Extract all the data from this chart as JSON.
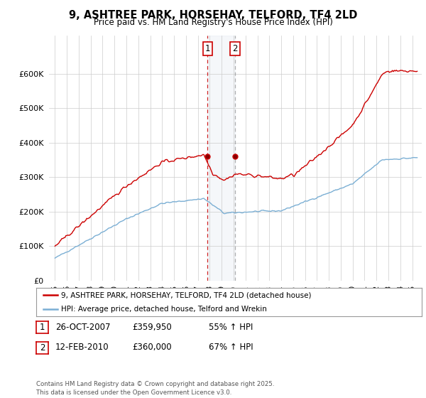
{
  "title": "9, ASHTREE PARK, HORSEHAY, TELFORD, TF4 2LD",
  "subtitle": "Price paid vs. HM Land Registry's House Price Index (HPI)",
  "ylim": [
    0,
    700000
  ],
  "yticks": [
    0,
    100000,
    200000,
    300000,
    400000,
    500000,
    600000
  ],
  "ytick_labels": [
    "£0",
    "£100K",
    "£200K",
    "£300K",
    "£400K",
    "£500K",
    "£600K"
  ],
  "hpi_color": "#7bafd4",
  "price_color": "#cc0000",
  "sale1_date": 2007.82,
  "sale1_price": 359950,
  "sale2_date": 2010.12,
  "sale2_price": 360000,
  "legend_price_label": "9, ASHTREE PARK, HORSEHAY, TELFORD, TF4 2LD (detached house)",
  "legend_hpi_label": "HPI: Average price, detached house, Telford and Wrekin",
  "annotation1": "1",
  "annotation2": "2",
  "table_row1": [
    "1",
    "26-OCT-2007",
    "£359,950",
    "55% ↑ HPI"
  ],
  "table_row2": [
    "2",
    "12-FEB-2010",
    "£360,000",
    "67% ↑ HPI"
  ],
  "footer": "Contains HM Land Registry data © Crown copyright and database right 2025.\nThis data is licensed under the Open Government Licence v3.0.",
  "background_color": "#ffffff",
  "grid_color": "#cccccc"
}
